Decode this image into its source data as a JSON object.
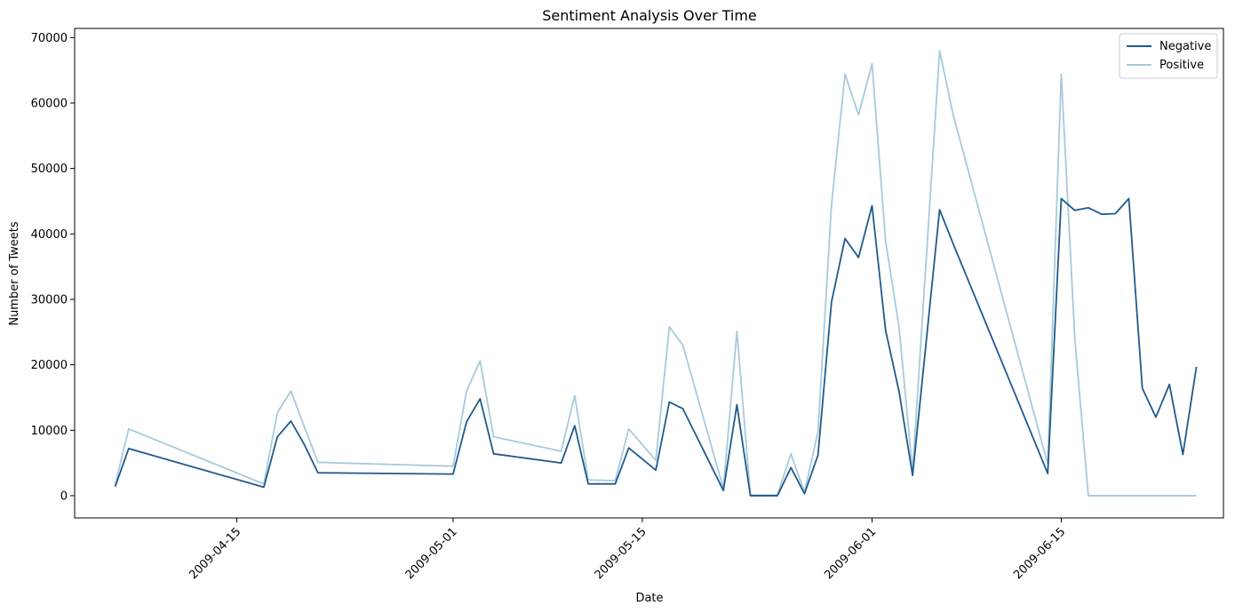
{
  "chart_data": {
    "type": "line",
    "title": "Sentiment Analysis Over Time",
    "xlabel": "Date",
    "ylabel": "Number of Tweets",
    "xlim": [
      "2009-04-03",
      "2009-06-27"
    ],
    "ylim": [
      -3400,
      71400
    ],
    "x_ticks": [
      "2009-04-15",
      "2009-05-01",
      "2009-05-15",
      "2009-06-01",
      "2009-06-15"
    ],
    "y_ticks": [
      0,
      10000,
      20000,
      30000,
      40000,
      50000,
      60000,
      70000
    ],
    "grid": false,
    "legend_position": "top-right",
    "x": [
      "2009-04-06",
      "2009-04-07",
      "2009-04-17",
      "2009-04-18",
      "2009-04-19",
      "2009-04-20",
      "2009-04-21",
      "2009-05-01",
      "2009-05-02",
      "2009-05-03",
      "2009-05-04",
      "2009-05-09",
      "2009-05-10",
      "2009-05-11",
      "2009-05-13",
      "2009-05-14",
      "2009-05-16",
      "2009-05-17",
      "2009-05-18",
      "2009-05-21",
      "2009-05-22",
      "2009-05-23",
      "2009-05-25",
      "2009-05-26",
      "2009-05-27",
      "2009-05-28",
      "2009-05-29",
      "2009-05-30",
      "2009-05-31",
      "2009-06-01",
      "2009-06-02",
      "2009-06-03",
      "2009-06-04",
      "2009-06-06",
      "2009-06-07",
      "2009-06-14",
      "2009-06-15",
      "2009-06-16",
      "2009-06-17",
      "2009-06-18",
      "2009-06-19",
      "2009-06-20",
      "2009-06-21",
      "2009-06-22",
      "2009-06-23",
      "2009-06-24",
      "2009-06-25"
    ],
    "series": [
      {
        "name": "Negative",
        "color": "#1f5a8e",
        "values": [
          1400,
          7200,
          1300,
          9000,
          11400,
          7800,
          3500,
          3300,
          11300,
          14800,
          6400,
          5000,
          10700,
          1800,
          1800,
          7300,
          3900,
          14300,
          13300,
          800,
          13900,
          0,
          0,
          4300,
          300,
          6200,
          29600,
          39300,
          36400,
          44300,
          25300,
          15900,
          3100,
          43700,
          38500,
          3400,
          45400,
          43600,
          44000,
          43000,
          43100,
          45400,
          16400,
          12000,
          17000,
          6300,
          19700
        ]
      },
      {
        "name": "Positive",
        "color": "#a8cadb",
        "values": [
          1700,
          10200,
          1800,
          12700,
          16000,
          10500,
          5100,
          4500,
          16000,
          20600,
          9000,
          6800,
          15300,
          2400,
          2300,
          10200,
          5400,
          25800,
          23000,
          1100,
          25100,
          100,
          100,
          6400,
          500,
          9800,
          44400,
          64400,
          58200,
          66000,
          38900,
          25700,
          3700,
          68000,
          58200,
          4800,
          64400,
          24100,
          0,
          0,
          0,
          0,
          0,
          0,
          0,
          0,
          0
        ]
      }
    ]
  }
}
